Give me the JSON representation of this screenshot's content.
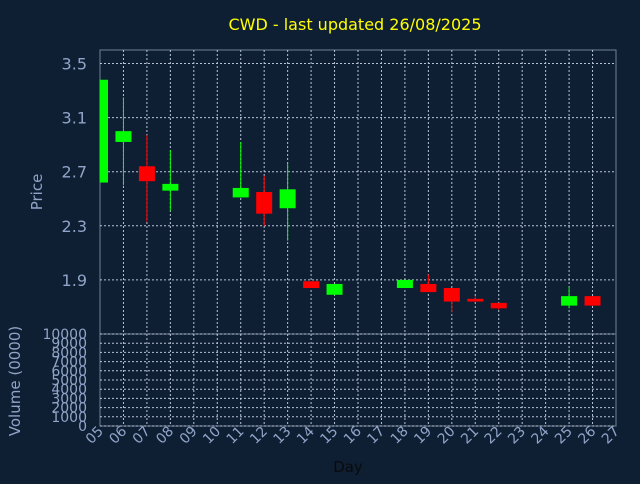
{
  "chart_data": {
    "type": "candlestick",
    "title": "CWD - last updated 26/08/2025",
    "xlabel": "Day",
    "ylabel_price": "Price",
    "ylabel_volume": "Volume (0000)",
    "x_ticks": [
      "05",
      "06",
      "07",
      "08",
      "09",
      "10",
      "11",
      "12",
      "13",
      "14",
      "15",
      "16",
      "17",
      "18",
      "19",
      "20",
      "21",
      "22",
      "23",
      "24",
      "25",
      "26",
      "27"
    ],
    "price_ylim": [
      1.5,
      3.6
    ],
    "price_yticks": [
      "1.9",
      "2.3",
      "2.7",
      "3.1",
      "3.5"
    ],
    "volume_ylim": [
      0,
      10000
    ],
    "volume_yticks": [
      "0",
      "1000",
      "2000",
      "3000",
      "4000",
      "5000",
      "6000",
      "7000",
      "8000",
      "9000",
      "10000"
    ],
    "grid": true,
    "up_color": "#00ff00",
    "down_color": "#ff0000",
    "candles": [
      {
        "day": "05",
        "open": 2.62,
        "close": 3.38,
        "high": 3.38,
        "low": 2.62
      },
      {
        "day": "06",
        "open": 2.92,
        "close": 3.0,
        "high": 3.25,
        "low": 2.6
      },
      {
        "day": "07",
        "open": 2.74,
        "close": 2.63,
        "high": 2.97,
        "low": 2.33
      },
      {
        "day": "08",
        "open": 2.56,
        "close": 2.61,
        "high": 2.86,
        "low": 2.41
      },
      {
        "day": "11",
        "open": 2.51,
        "close": 2.58,
        "high": 2.92,
        "low": 2.51
      },
      {
        "day": "12",
        "open": 2.55,
        "close": 2.39,
        "high": 2.67,
        "low": 2.3
      },
      {
        "day": "13",
        "open": 2.43,
        "close": 2.57,
        "high": 2.76,
        "low": 2.19
      },
      {
        "day": "14",
        "open": 1.89,
        "close": 1.84,
        "high": 1.89,
        "low": 1.84
      },
      {
        "day": "15",
        "open": 1.79,
        "close": 1.87,
        "high": 1.87,
        "low": 1.79
      },
      {
        "day": "18",
        "open": 1.84,
        "close": 1.9,
        "high": 1.9,
        "low": 1.84
      },
      {
        "day": "19",
        "open": 1.87,
        "close": 1.81,
        "high": 1.94,
        "low": 1.81
      },
      {
        "day": "20",
        "open": 1.84,
        "close": 1.74,
        "high": 1.84,
        "low": 1.66
      },
      {
        "day": "21",
        "open": 1.76,
        "close": 1.74,
        "high": 1.78,
        "low": 1.74
      },
      {
        "day": "22",
        "open": 1.73,
        "close": 1.69,
        "high": 1.73,
        "low": 1.68
      },
      {
        "day": "25",
        "open": 1.71,
        "close": 1.78,
        "high": 1.85,
        "low": 1.69
      },
      {
        "day": "26",
        "open": 1.78,
        "close": 1.71,
        "high": 1.78,
        "low": 1.71
      }
    ],
    "volume": []
  }
}
